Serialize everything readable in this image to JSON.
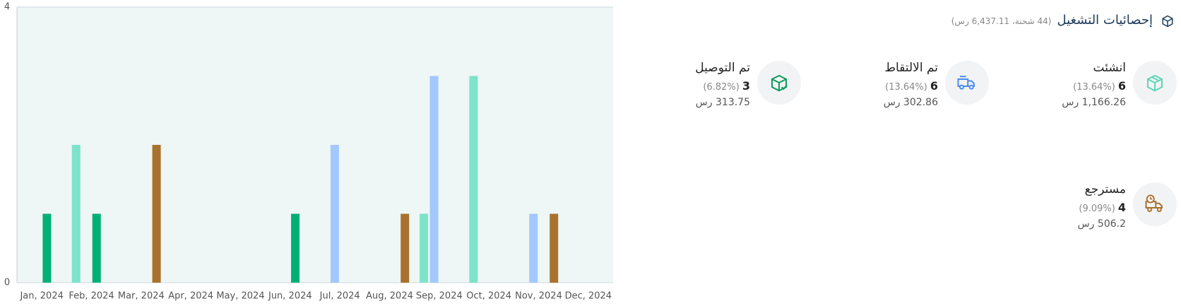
{
  "header": {
    "title": "إحصائيات التشغيل",
    "subtitle": "(44 شحنة، 6,437.11 رس)"
  },
  "stats": [
    {
      "label": "انشئت",
      "count": 6,
      "percent": "(13.64%)",
      "amount": "1,166.26 رس"
    },
    {
      "label": "تم الالتقاط",
      "count": 6,
      "percent": "(13.64%)",
      "amount": "302.86 رس"
    },
    {
      "label": "تم التوصيل",
      "count": 3,
      "percent": "(6.82%)",
      "amount": "313.75 رس"
    },
    {
      "label": "مسترجع",
      "count": 4,
      "percent": "(9.09%)",
      "amount": "506.2 رس"
    }
  ],
  "chart_data": {
    "type": "bar",
    "categories": [
      "Jan, 2024",
      "Feb, 2024",
      "Mar, 2024",
      "Apr, 2024",
      "May, 2024",
      "Jun, 2024",
      "Jul, 2024",
      "Aug, 2024",
      "Sep, 2024",
      "Oct, 2024",
      "Nov, 2024",
      "Dec, 2024"
    ],
    "series": [
      {
        "color": "#7de3c9",
        "values": [
          0,
          2,
          0,
          0,
          0,
          0,
          0,
          0,
          1,
          3,
          0,
          0
        ]
      },
      {
        "color": "#a3c8ff",
        "values": [
          0,
          0,
          0,
          0,
          0,
          0,
          2,
          0,
          3,
          0,
          1,
          0
        ]
      },
      {
        "color": "#00b074",
        "values": [
          1,
          1,
          0,
          0,
          0,
          1,
          0,
          0,
          0,
          0,
          0,
          0
        ]
      },
      {
        "color": "#a8722e",
        "values": [
          0,
          0,
          2,
          0,
          0,
          0,
          0,
          1,
          0,
          0,
          1,
          0
        ]
      }
    ],
    "ylim": [
      0,
      4
    ],
    "yticks": [
      0,
      4
    ]
  }
}
